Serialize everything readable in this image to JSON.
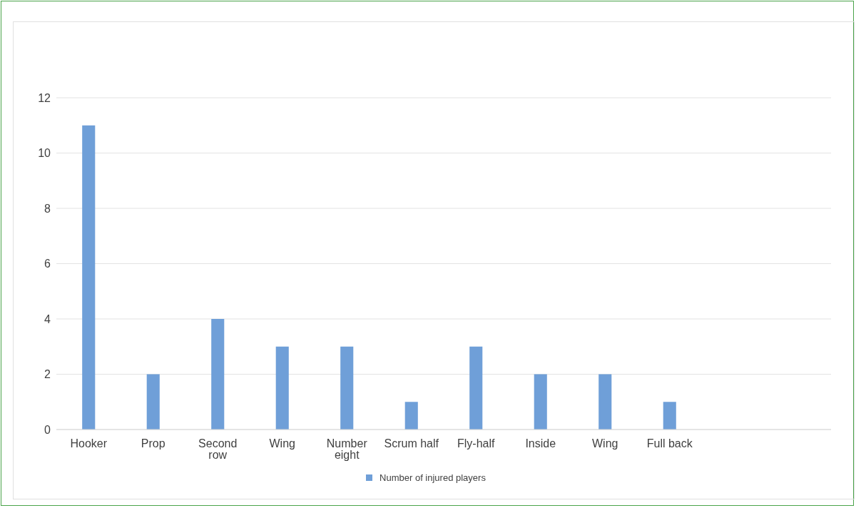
{
  "chart_data": {
    "type": "bar",
    "categories": [
      "Hooker",
      "Prop",
      "Second row",
      "Wing",
      "Number eight",
      "Scrum half",
      "Fly-half",
      "Inside",
      "Wing",
      "Full back",
      null,
      null
    ],
    "series": [
      {
        "name": "Number of injured players",
        "color": "#6f9fd8",
        "values": [
          11,
          2,
          4,
          3,
          3,
          1,
          3,
          2,
          2,
          1,
          null,
          null
        ]
      }
    ],
    "ylim": [
      0,
      12
    ],
    "yticks": [
      0,
      2,
      4,
      6,
      8,
      10,
      12
    ],
    "grid": "y",
    "legend": "bottom"
  }
}
